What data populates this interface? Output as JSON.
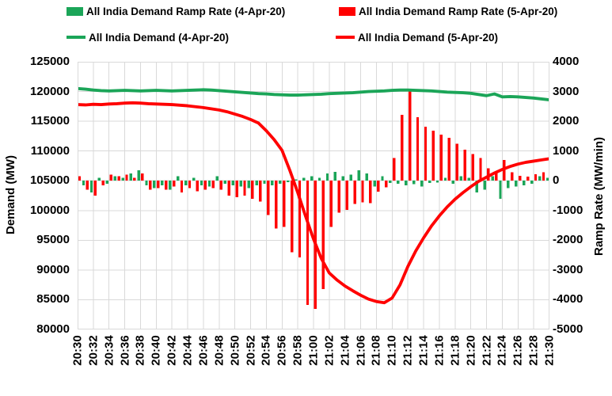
{
  "axes": {
    "left_title": "Demand (MW)",
    "right_title": "Ramp Rate (MW/min)"
  },
  "colors": {
    "green": "#1BA558",
    "red": "#FF0000",
    "grid": "#D9D9D9",
    "text": "#000000",
    "background": "#FFFFFF"
  },
  "chart_data": {
    "type": "combo-bar-line",
    "x": [
      "20:30",
      "20:31",
      "20:32",
      "20:33",
      "20:34",
      "20:35",
      "20:36",
      "20:37",
      "20:38",
      "20:39",
      "20:40",
      "20:41",
      "20:42",
      "20:43",
      "20:44",
      "20:45",
      "20:46",
      "20:47",
      "20:48",
      "20:49",
      "20:50",
      "20:51",
      "20:52",
      "20:53",
      "20:54",
      "20:55",
      "20:56",
      "20:57",
      "20:58",
      "20:59",
      "21:00",
      "21:01",
      "21:02",
      "21:03",
      "21:04",
      "21:05",
      "21:06",
      "21:07",
      "21:08",
      "21:09",
      "21:10",
      "21:11",
      "21:12",
      "21:13",
      "21:14",
      "21:15",
      "21:16",
      "21:17",
      "21:18",
      "21:19",
      "21:20",
      "21:21",
      "21:22",
      "21:23",
      "21:24",
      "21:25",
      "21:26",
      "21:27",
      "21:28",
      "21:29",
      "21:30"
    ],
    "x_tick_every_minutes": 2,
    "grid": true,
    "legend_position": "top",
    "left_axis": {
      "label": "Demand (MW)",
      "min": 80000,
      "max": 125000,
      "step": 5000
    },
    "right_axis": {
      "label": "Ramp Rate (MW/min)",
      "min": -5000,
      "max": 4000,
      "step": 1000
    },
    "series": [
      {
        "name": "All India Demand Ramp Rate (4-Apr-20)",
        "type": "bar",
        "axis": "right",
        "color": "#1BA558",
        "values": [
          -100,
          -150,
          -400,
          100,
          -100,
          150,
          100,
          250,
          350,
          -150,
          -250,
          -150,
          -300,
          150,
          -150,
          100,
          -150,
          -200,
          150,
          -100,
          -150,
          -200,
          -250,
          -150,
          -100,
          -150,
          -100,
          -50,
          50,
          100,
          150,
          100,
          250,
          300,
          150,
          200,
          350,
          250,
          -200,
          150,
          -80,
          -100,
          -150,
          -120,
          -200,
          -80,
          -60,
          100,
          -100,
          150,
          100,
          -400,
          -300,
          150,
          -600,
          -250,
          -200,
          -150,
          -100,
          150,
          100
        ]
      },
      {
        "name": "All India Demand Ramp Rate (5-Apr-20)",
        "type": "bar",
        "axis": "right",
        "color": "#FF0000",
        "values": [
          150,
          -300,
          -500,
          -150,
          200,
          150,
          200,
          100,
          250,
          -300,
          -250,
          -300,
          -200,
          -400,
          -250,
          -350,
          -300,
          -250,
          -300,
          -500,
          -550,
          -500,
          -600,
          -700,
          -1150,
          -1600,
          -1550,
          -2400,
          -2580,
          -4180,
          -4310,
          -3645,
          -1550,
          -1070,
          -980,
          -780,
          -720,
          -750,
          -370,
          -220,
          770,
          2220,
          3020,
          2130,
          1820,
          1690,
          1550,
          1450,
          1250,
          1050,
          900,
          760,
          420,
          280,
          700,
          280,
          170,
          140,
          220,
          280,
          260
        ]
      },
      {
        "name": "All India Demand (4-Apr-20)",
        "type": "line",
        "axis": "left",
        "color": "#1BA558",
        "values": [
          120500,
          120400,
          120250,
          120150,
          120100,
          120150,
          120200,
          120150,
          120100,
          120150,
          120200,
          120150,
          120100,
          120150,
          120200,
          120250,
          120300,
          120250,
          120150,
          120050,
          119950,
          119850,
          119750,
          119650,
          119600,
          119500,
          119450,
          119400,
          119400,
          119450,
          119500,
          119550,
          119650,
          119700,
          119750,
          119800,
          119900,
          120000,
          120050,
          120100,
          120200,
          120250,
          120250,
          120200,
          120150,
          120100,
          120000,
          119900,
          119850,
          119800,
          119700,
          119500,
          119300,
          119600,
          119100,
          119150,
          119100,
          119000,
          118900,
          118750,
          118600
        ]
      },
      {
        "name": "All India Demand (5-Apr-20)",
        "type": "line",
        "axis": "left",
        "color": "#FF0000",
        "values": [
          117800,
          117750,
          117850,
          117800,
          117900,
          117950,
          118050,
          118100,
          118050,
          117950,
          117900,
          117850,
          117800,
          117700,
          117600,
          117450,
          117300,
          117100,
          116900,
          116600,
          116200,
          115800,
          115300,
          114700,
          113400,
          111900,
          110100,
          106700,
          103000,
          99000,
          95200,
          91900,
          89500,
          88300,
          87300,
          86500,
          85750,
          85100,
          84700,
          84500,
          85300,
          87500,
          90600,
          93200,
          95400,
          97400,
          99100,
          100600,
          101900,
          103000,
          104000,
          104900,
          105600,
          106300,
          106900,
          107400,
          107800,
          108100,
          108300,
          108500,
          108700
        ]
      }
    ]
  }
}
